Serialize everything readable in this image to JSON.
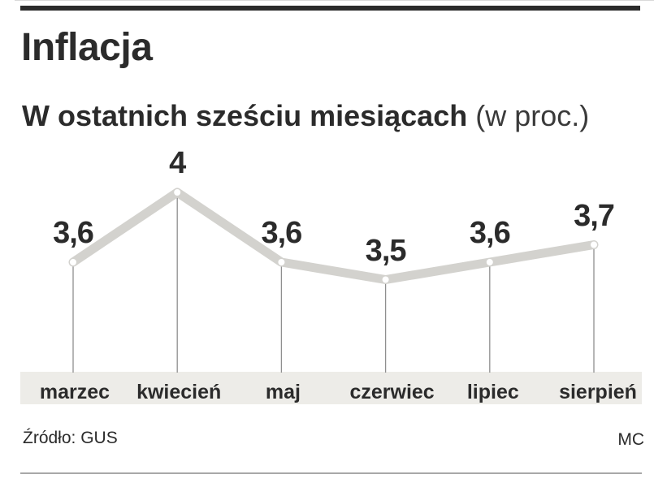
{
  "header": {
    "title": "Inflacja",
    "subtitle_bold": "W ostatnich sześciu miesiącach",
    "subtitle_light": " (w proc.)"
  },
  "chart_data": {
    "type": "line",
    "title": "Inflacja",
    "subtitle": "W ostatnich sześciu miesiącach (w proc.)",
    "categories": [
      "marzec",
      "kwiecień",
      "maj",
      "czerwiec",
      "lipiec",
      "sierpień"
    ],
    "values": [
      3.6,
      4,
      3.6,
      3.5,
      3.6,
      3.7
    ],
    "value_labels": [
      "3,6",
      "4",
      "3,6",
      "3,5",
      "3,6",
      "3,7"
    ],
    "unit": "proc.",
    "ylim": [
      3.3,
      4.1
    ],
    "grid": false,
    "legend": false,
    "line_color": "#d3d2ce",
    "marker_color": "#ffffff",
    "drop_line_color": "#8f8f8f",
    "label_color": "#2b2b2b",
    "band_color": "#edece8"
  },
  "footer": {
    "source": "Źródło: GUS",
    "credit": "MC"
  }
}
